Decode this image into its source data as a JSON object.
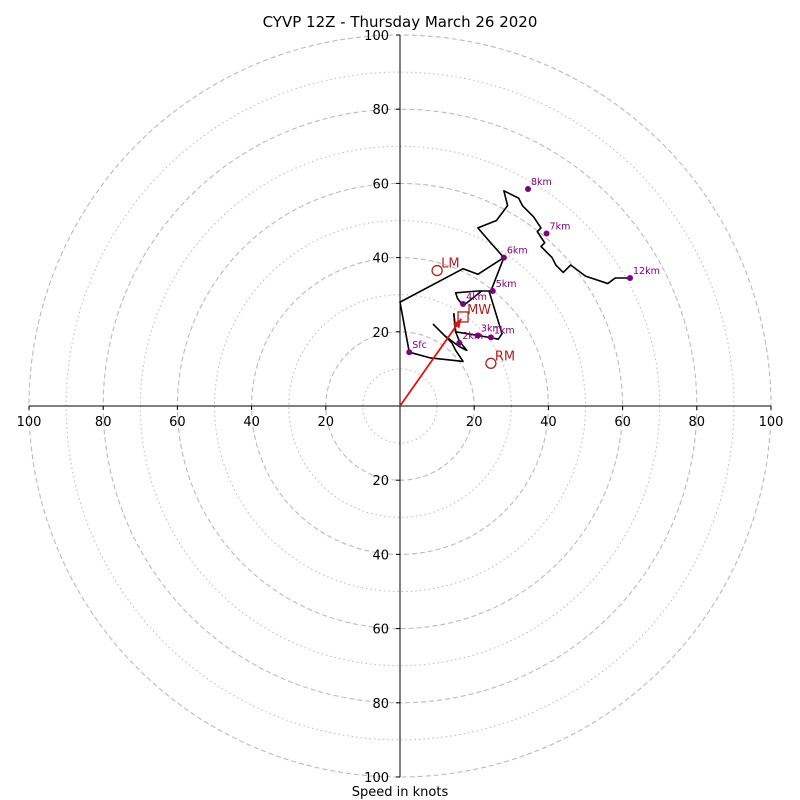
{
  "chart_data": {
    "type": "scatter",
    "title": "CYVP 12Z - Thursday March 26 2020",
    "xlabel": "Speed in knots",
    "xlim": [
      -100,
      100
    ],
    "ylim": [
      -100,
      100
    ],
    "rings_major": [
      20,
      40,
      60,
      80,
      100
    ],
    "rings_minor": [
      10,
      30,
      50,
      70,
      90
    ],
    "x_tick_labels": [
      "100",
      "80",
      "60",
      "40",
      "20",
      "20",
      "40",
      "60",
      "80",
      "100"
    ],
    "y_tick_labels": [
      "100",
      "80",
      "60",
      "40",
      "20",
      "20",
      "40",
      "60",
      "80",
      "100"
    ],
    "hodograph": {
      "x": [
        2.5,
        0,
        17,
        21,
        28,
        24,
        21,
        26,
        29,
        28,
        32,
        33,
        36,
        38,
        37,
        39,
        38,
        41,
        42,
        44,
        46,
        50,
        56,
        58,
        62
      ],
      "y": [
        14.5,
        28,
        37,
        35.5,
        40,
        44.5,
        48,
        50,
        54,
        58,
        56,
        54,
        51,
        48,
        47,
        44,
        43,
        40,
        38,
        36,
        38,
        35,
        33,
        34.5,
        34.5
      ],
      "segments": [
        {
          "x": [
            2.5,
            8,
            17,
            15,
            14
          ],
          "y": [
            14.5,
            13,
            12,
            15,
            17
          ]
        },
        {
          "x": [
            14,
            9,
            12,
            16,
            18,
            16,
            15,
            14.5
          ],
          "y": [
            17,
            22,
            19,
            16,
            15,
            17.5,
            20,
            25
          ]
        },
        {
          "x": [
            14.5,
            15,
            21,
            24,
            26.5,
            27.5,
            24
          ],
          "y": [
            25,
            20,
            19,
            18.5,
            18,
            19.5,
            31
          ]
        },
        {
          "x": [
            24,
            21,
            15,
            15.5,
            17,
            22,
            24.5
          ],
          "y": [
            31,
            31,
            30.5,
            29,
            27,
            31,
            31
          ]
        },
        {
          "x": [
            24.5,
            28
          ],
          "y": [
            31,
            40
          ]
        }
      ]
    },
    "height_points": [
      {
        "label": "Sfc",
        "x": 2.5,
        "y": 14.5
      },
      {
        "label": "1km",
        "x": 24.5,
        "y": 18.5
      },
      {
        "label": "2km",
        "x": 16,
        "y": 17
      },
      {
        "label": "3km",
        "x": 21,
        "y": 19
      },
      {
        "label": "4km",
        "x": 17,
        "y": 27.5
      },
      {
        "label": "5km",
        "x": 25,
        "y": 31
      },
      {
        "label": "6km",
        "x": 28,
        "y": 40
      },
      {
        "label": "7km",
        "x": 39.5,
        "y": 46.5
      },
      {
        "label": "8km",
        "x": 34.5,
        "y": 58.5
      },
      {
        "label": "12km",
        "x": 62,
        "y": 34.5
      }
    ],
    "storm_motions": [
      {
        "label": "LM",
        "x": 10,
        "y": 36.5,
        "marker": "circle"
      },
      {
        "label": "MW",
        "x": 17,
        "y": 24,
        "marker": "square"
      },
      {
        "label": "RM",
        "x": 24.5,
        "y": 11.5,
        "marker": "circle"
      }
    ],
    "shear_vector": {
      "x0": 0,
      "y0": 0,
      "x1": 16.5,
      "y1": 23.5
    },
    "colors": {
      "ring": "#bbbbbb",
      "axis": "#000000",
      "hodograph": "#000000",
      "height_points": "#800080",
      "storm_motion": "#b22222",
      "shear_vector": "#e8110c"
    }
  }
}
